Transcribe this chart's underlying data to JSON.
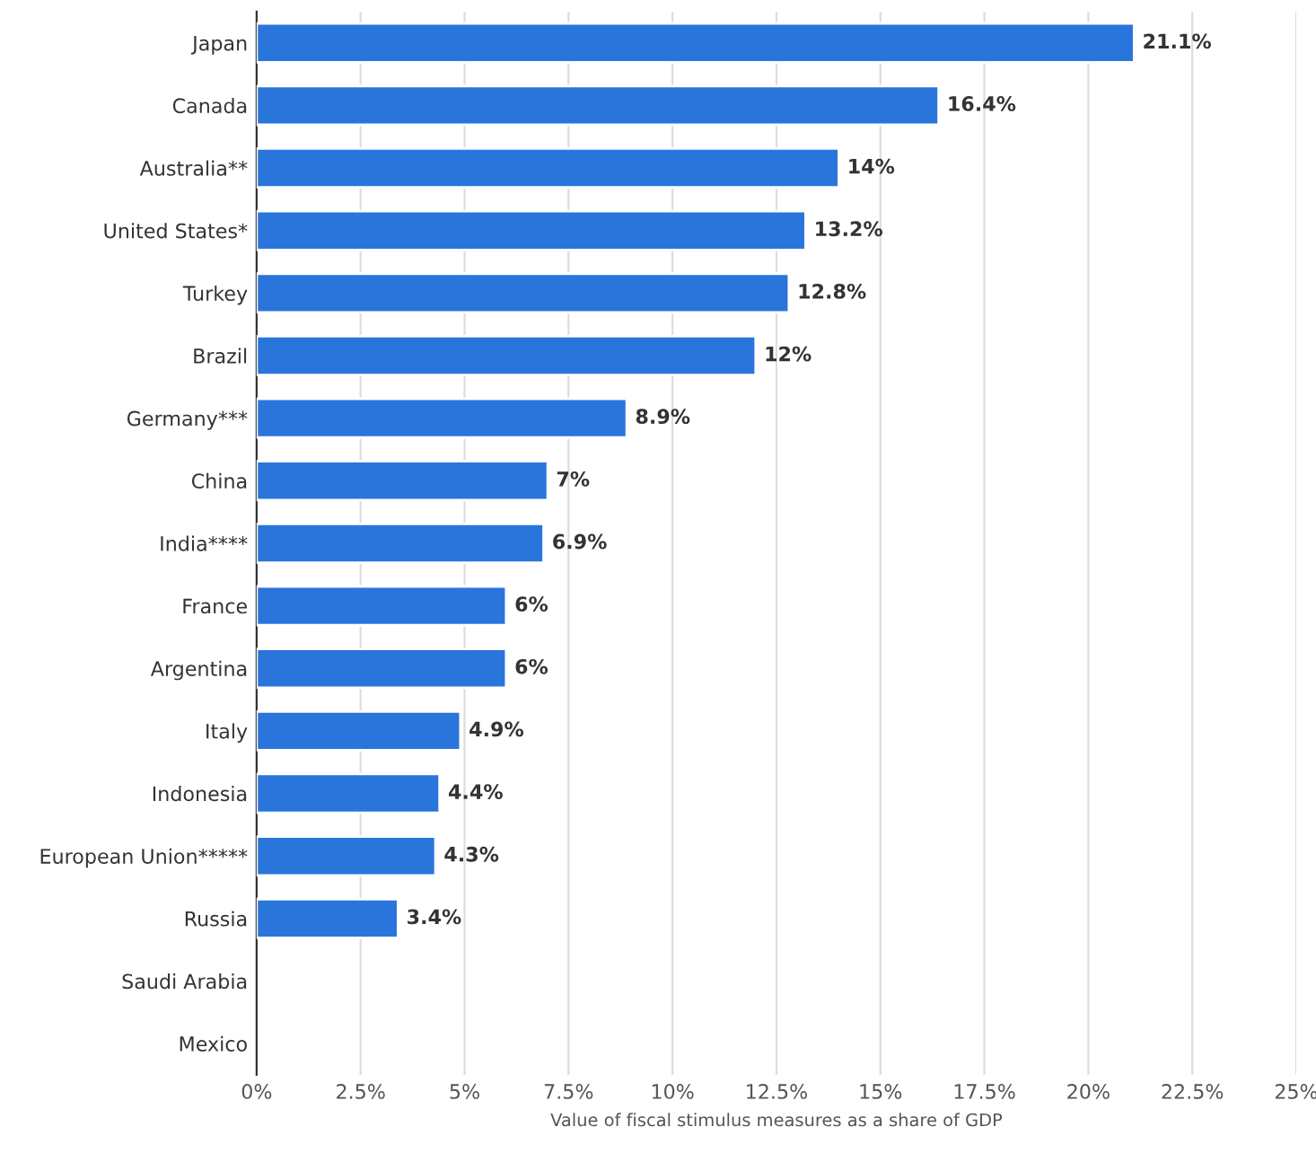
{
  "chart_data": {
    "type": "bar",
    "orientation": "horizontal",
    "xlabel": "Value of fiscal stimulus measures as a share of GDP",
    "categories": [
      "Japan",
      "Canada",
      "Australia**",
      "United States*",
      "Turkey",
      "Brazil",
      "Germany***",
      "China",
      "India****",
      "France",
      "Argentina",
      "Italy",
      "Indonesia",
      "European Union*****",
      "Russia",
      "Saudi Arabia",
      "Mexico"
    ],
    "values": [
      21.1,
      16.4,
      14,
      13.2,
      12.8,
      12,
      8.9,
      7,
      6.9,
      6,
      6,
      4.9,
      4.4,
      4.3,
      3.4,
      null,
      null
    ],
    "value_labels": [
      "21.1%",
      "16.4%",
      "14%",
      "13.2%",
      "12.8%",
      "12%",
      "8.9%",
      "7%",
      "6.9%",
      "6%",
      "6%",
      "4.9%",
      "4.4%",
      "4.3%",
      "3.4%",
      null,
      null
    ],
    "color": "#2a75dc",
    "grid": "x",
    "xlim": [
      0,
      25
    ],
    "xticks": [
      {
        "value": 0,
        "label": "0%"
      },
      {
        "value": 2.5,
        "label": "2.5%"
      },
      {
        "value": 5,
        "label": "5%"
      },
      {
        "value": 7.5,
        "label": "7.5%"
      },
      {
        "value": 10,
        "label": "10%"
      },
      {
        "value": 12.5,
        "label": "12.5%"
      },
      {
        "value": 15,
        "label": "15%"
      },
      {
        "value": 17.5,
        "label": "17.5%"
      },
      {
        "value": 20,
        "label": "20%"
      },
      {
        "value": 22.5,
        "label": "22.5%"
      },
      {
        "value": 25,
        "label": "25%"
      }
    ]
  }
}
